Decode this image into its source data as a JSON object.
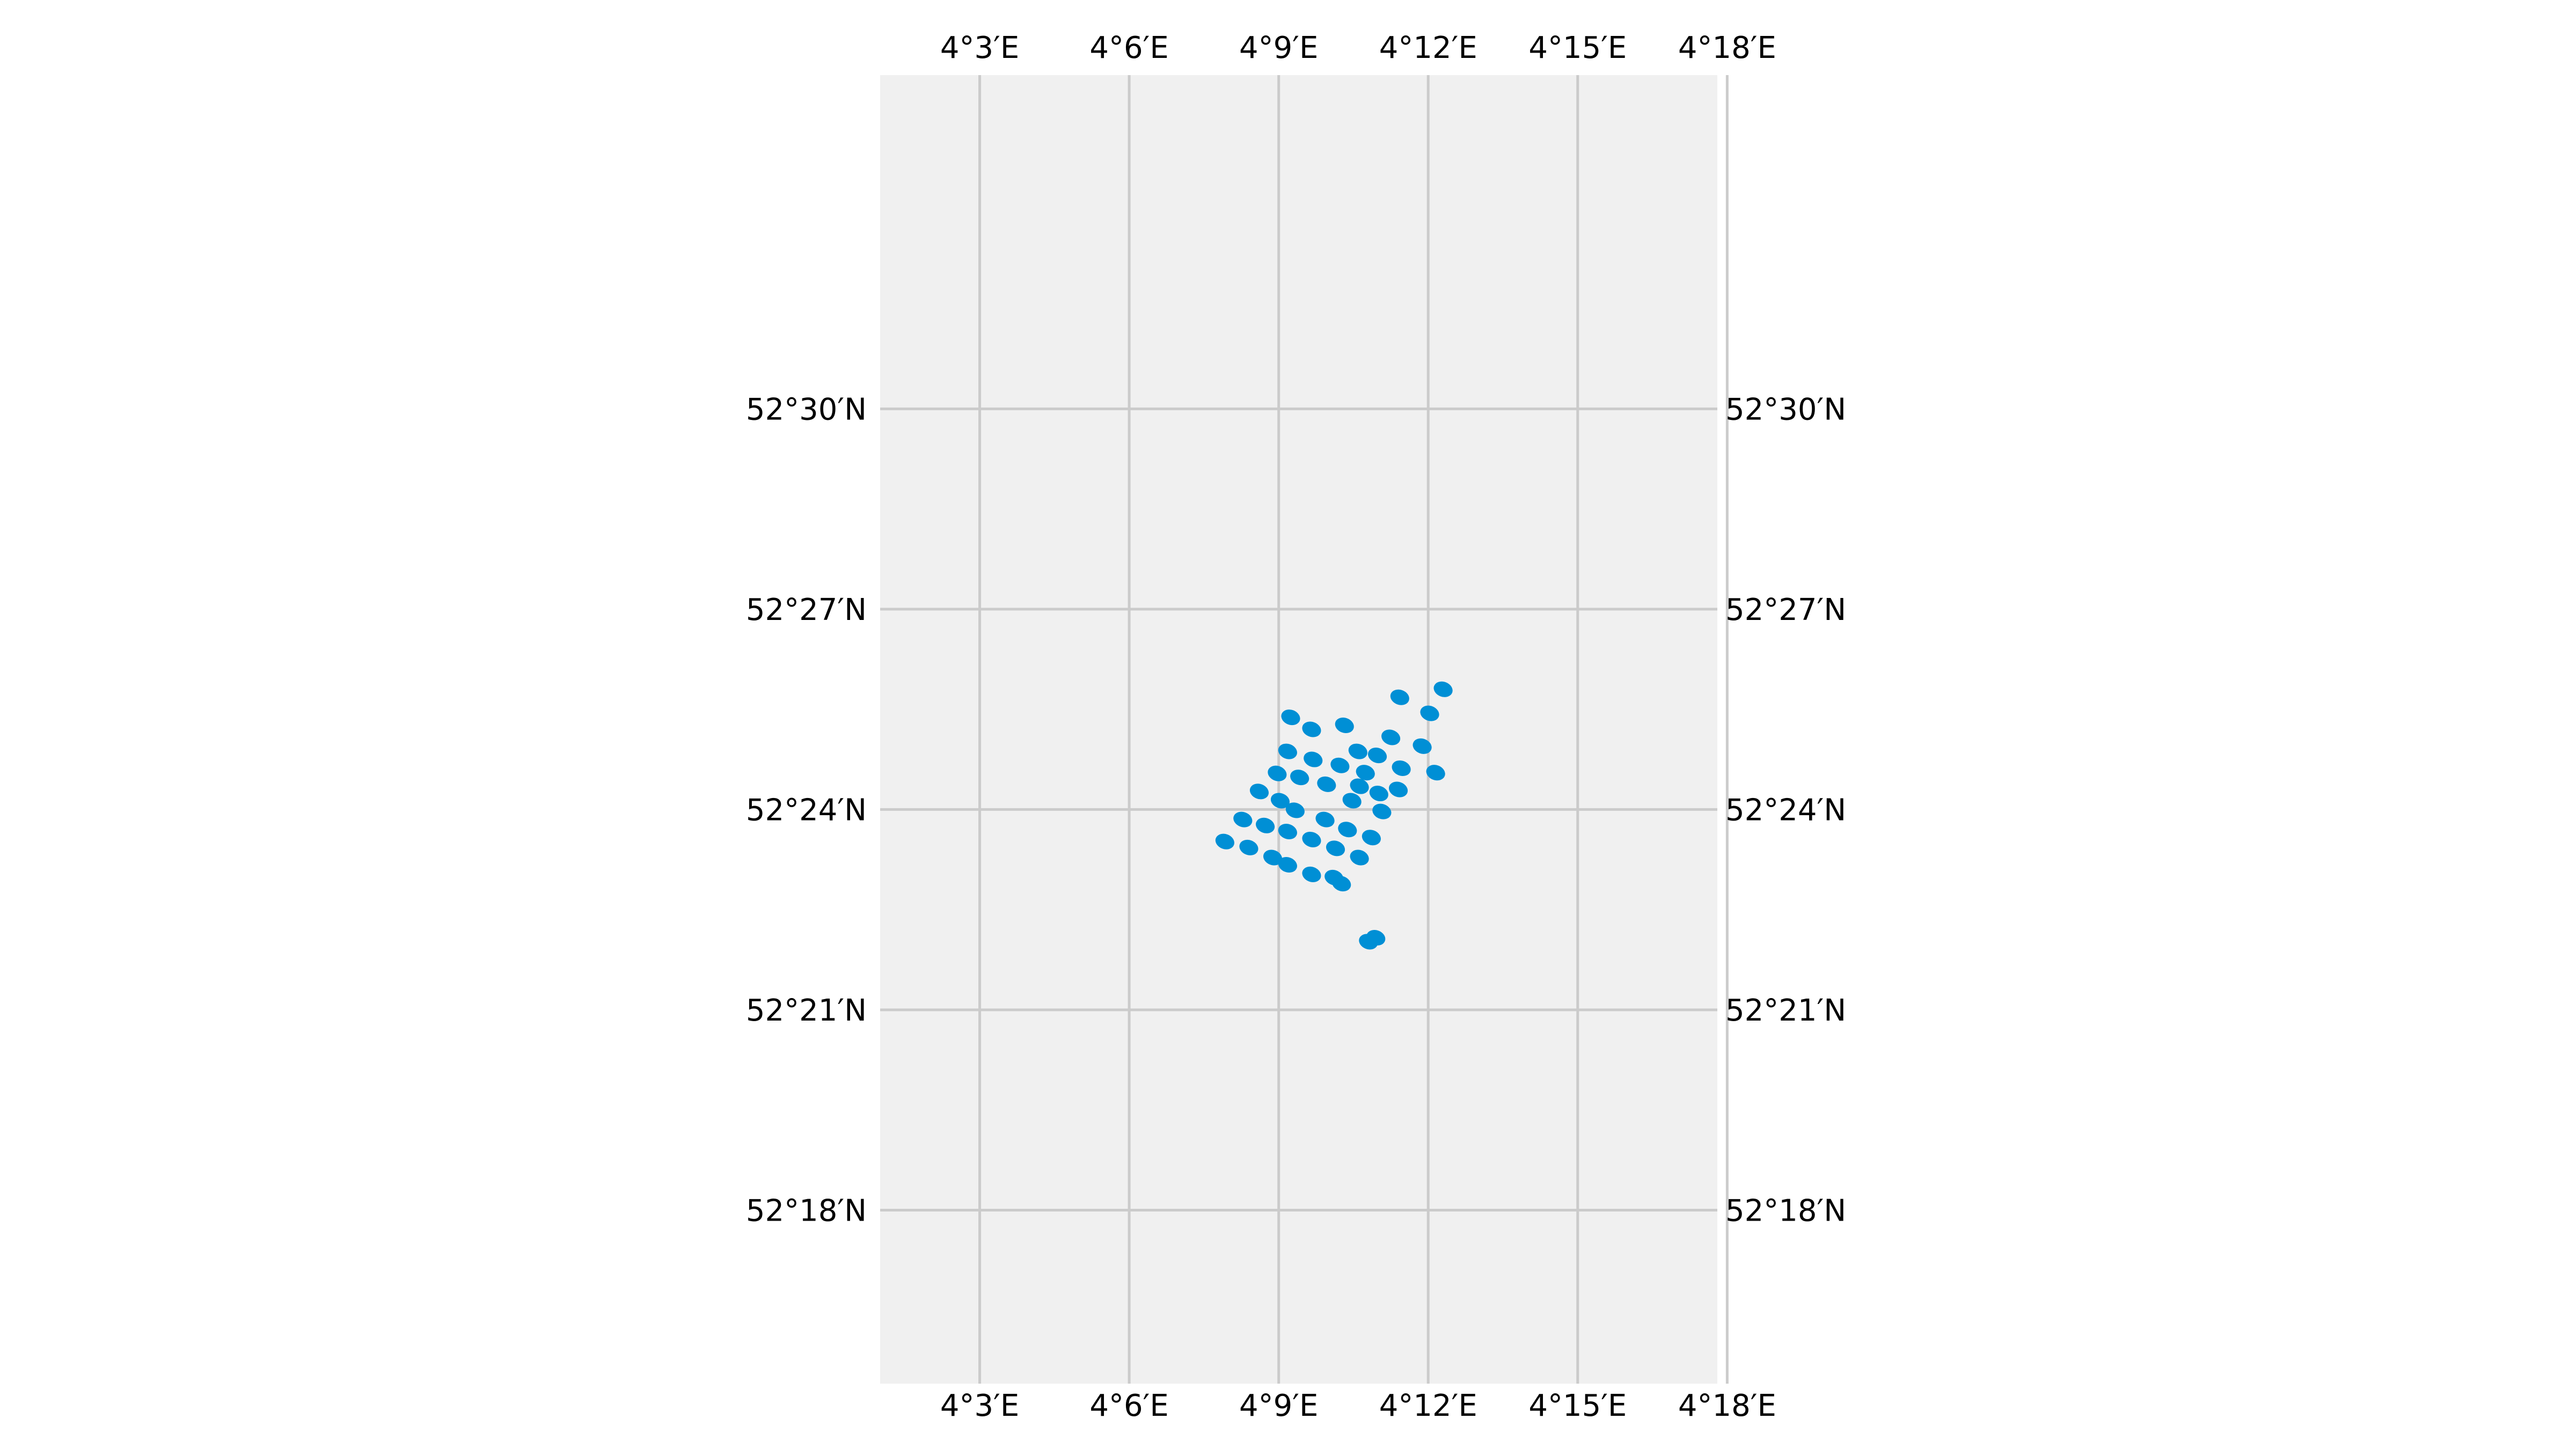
{
  "map": {
    "lon_range": [
      4.0167,
      4.2967
    ],
    "lat_range": [
      52.2567,
      52.5833
    ],
    "lon_ticks": [
      {
        "value": 4.05,
        "label": "4°3′E"
      },
      {
        "value": 4.1,
        "label": "4°6′E"
      },
      {
        "value": 4.15,
        "label": "4°9′E"
      },
      {
        "value": 4.2,
        "label": "4°12′E"
      },
      {
        "value": 4.25,
        "label": "4°15′E"
      },
      {
        "value": 4.3,
        "label": "4°18′E"
      }
    ],
    "lat_ticks": [
      {
        "value": 52.5,
        "label": "52°30′N"
      },
      {
        "value": 52.45,
        "label": "52°27′N"
      },
      {
        "value": 52.4,
        "label": "52°24′N"
      },
      {
        "value": 52.35,
        "label": "52°21′N"
      },
      {
        "value": 52.3,
        "label": "52°18′N"
      }
    ],
    "background_color": "#f0f0f0",
    "grid_color": "#cbcbcb",
    "point_color": "#008fd5",
    "grid": true
  },
  "chart_data": {
    "type": "scatter",
    "title": "",
    "xlabel": "",
    "ylabel": "",
    "xlim": [
      4.0167,
      4.2967
    ],
    "ylim": [
      52.2567,
      52.5833
    ],
    "series": [
      {
        "points": [
          [
            4.205,
            52.43
          ],
          [
            4.1905,
            52.428
          ],
          [
            4.2005,
            52.424
          ],
          [
            4.154,
            52.423
          ],
          [
            4.1875,
            52.418
          ],
          [
            4.172,
            52.421
          ],
          [
            4.161,
            52.42
          ],
          [
            4.183,
            52.4135
          ],
          [
            4.198,
            52.4158
          ],
          [
            4.1765,
            52.4145
          ],
          [
            4.191,
            52.4103
          ],
          [
            4.1705,
            52.411
          ],
          [
            4.2025,
            52.4092
          ],
          [
            4.153,
            52.4145
          ],
          [
            4.1615,
            52.4125
          ],
          [
            4.179,
            52.4092
          ],
          [
            4.1495,
            52.409
          ],
          [
            4.177,
            52.4058
          ],
          [
            4.19,
            52.405
          ],
          [
            4.157,
            52.408
          ],
          [
            4.166,
            52.4063
          ],
          [
            4.1835,
            52.404
          ],
          [
            4.1435,
            52.4045
          ],
          [
            4.1505,
            52.4022
          ],
          [
            4.1745,
            52.4022
          ],
          [
            4.1555,
            52.3998
          ],
          [
            4.1845,
            52.3995
          ],
          [
            4.138,
            52.3975
          ],
          [
            4.1655,
            52.3975
          ],
          [
            4.1455,
            52.396
          ],
          [
            4.173,
            52.395
          ],
          [
            4.132,
            52.392
          ],
          [
            4.153,
            52.3945
          ],
          [
            4.161,
            52.3925
          ],
          [
            4.181,
            52.393
          ],
          [
            4.14,
            52.3905
          ],
          [
            4.169,
            52.3903
          ],
          [
            4.148,
            52.388
          ],
          [
            4.177,
            52.388
          ],
          [
            4.153,
            52.3862
          ],
          [
            4.161,
            52.3838
          ],
          [
            4.1685,
            52.383
          ],
          [
            4.171,
            52.3815
          ],
          [
            4.18,
            52.367
          ],
          [
            4.1825,
            52.368
          ]
        ]
      }
    ]
  }
}
